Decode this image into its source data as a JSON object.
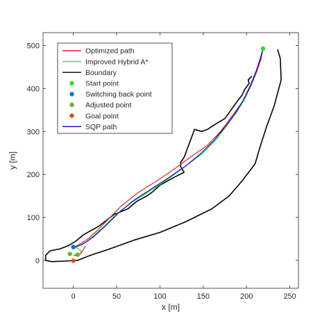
{
  "chart_data": {
    "type": "line",
    "title": "",
    "xlabel": "x [m]",
    "ylabel": "y [m]",
    "xlim": [
      -35,
      260
    ],
    "ylim": [
      -65,
      530
    ],
    "grid": false,
    "legend_position": "top-left",
    "x_ticks": [
      0,
      50,
      100,
      150,
      200,
      250
    ],
    "y_ticks": [
      0,
      100,
      200,
      300,
      400,
      500
    ],
    "x_tick_labels": [
      "0",
      "50",
      "100",
      "150",
      "200",
      "250"
    ],
    "y_tick_labels": [
      "0",
      "100",
      "200",
      "300",
      "400",
      "500"
    ],
    "legend": [
      {
        "label": "Optimized path",
        "kind": "line",
        "color": "#d62728"
      },
      {
        "label": "Improved Hybrid A*",
        "kind": "line",
        "color": "#2ee62e"
      },
      {
        "label": "Boundary",
        "kind": "line",
        "color": "#000000"
      },
      {
        "label": "Start point",
        "kind": "marker",
        "color": "#22e022"
      },
      {
        "label": "Switching back point",
        "kind": "marker",
        "color": "#0072bd"
      },
      {
        "label": "Adjusted point",
        "kind": "marker",
        "color": "#77ac30"
      },
      {
        "label": "Goal point",
        "kind": "marker",
        "color": "#d95319"
      },
      {
        "label": "SQP path",
        "kind": "line",
        "color": "#0000cd"
      }
    ],
    "series": [
      {
        "name": "Boundary",
        "color": "#000000",
        "width": 1.6,
        "kind": "line",
        "segments": [
          [
            [
              206,
              428
            ],
            [
              202,
              420
            ],
            [
              203,
              412
            ],
            [
              198,
              398
            ],
            [
              195,
              385
            ],
            [
              190,
              372
            ],
            [
              185,
              358
            ],
            [
              175,
              330
            ],
            [
              165,
              318
            ],
            [
              155,
              305
            ],
            [
              148,
              300
            ],
            [
              140,
              305
            ],
            [
              128,
              240
            ],
            [
              124,
              228
            ],
            [
              124,
              218
            ],
            [
              128,
              205
            ],
            [
              118,
              195
            ],
            [
              100,
              175
            ],
            [
              92,
              160
            ],
            [
              85,
              150
            ],
            [
              73,
              137
            ],
            [
              63,
              120
            ],
            [
              47,
              107
            ],
            [
              30,
              80
            ],
            [
              12,
              60
            ],
            [
              3,
              45
            ],
            [
              -5,
              35
            ],
            [
              -15,
              27
            ],
            [
              -27,
              22
            ],
            [
              -32,
              12
            ],
            [
              -32,
              0
            ],
            [
              -25,
              -3
            ],
            [
              -12,
              -2
            ],
            [
              5,
              0
            ],
            [
              20,
              12
            ],
            [
              40,
              25
            ],
            [
              70,
              47
            ],
            [
              100,
              65
            ],
            [
              130,
              90
            ],
            [
              160,
              120
            ],
            [
              180,
              150
            ],
            [
              195,
              185
            ],
            [
              210,
              225
            ],
            [
              215,
              260
            ],
            [
              223,
              310
            ],
            [
              232,
              360
            ],
            [
              240,
              420
            ],
            [
              239,
              470
            ],
            [
              236,
              490
            ]
          ]
        ]
      },
      {
        "name": "Improved Hybrid A*",
        "color": "#2ee62e",
        "width": 1.2,
        "kind": "line",
        "segments": [
          [
            [
              219,
              493
            ],
            [
              216,
              470
            ],
            [
              212,
              440
            ],
            [
              205,
              405
            ],
            [
              197,
              372
            ],
            [
              188,
              343
            ],
            [
              178,
              316
            ],
            [
              165,
              281
            ],
            [
              150,
              250
            ],
            [
              130,
              220
            ],
            [
              110,
              190
            ],
            [
              90,
              163
            ],
            [
              70,
              138
            ],
            [
              50,
              108
            ],
            [
              35,
              78
            ],
            [
              22,
              55
            ],
            [
              14,
              42
            ],
            [
              10,
              37
            ],
            [
              5,
              33
            ],
            [
              0,
              31
            ]
          ],
          [
            [
              0,
              31
            ],
            [
              5,
              28
            ],
            [
              9,
              22
            ],
            [
              8,
              15
            ],
            [
              3,
              12
            ],
            [
              0,
              13
            ]
          ]
        ]
      },
      {
        "name": "Optimized path",
        "color": "#d62728",
        "width": 1.2,
        "kind": "line",
        "segments": [
          [
            [
              219,
              493
            ],
            [
              217,
              470
            ],
            [
              212,
              440
            ],
            [
              204,
              402
            ],
            [
              195,
              368
            ],
            [
              183,
              335
            ],
            [
              170,
              300
            ],
            [
              155,
              268
            ],
            [
              135,
              240
            ],
            [
              115,
              210
            ],
            [
              95,
              183
            ],
            [
              75,
              158
            ],
            [
              55,
              126
            ],
            [
              40,
              95
            ],
            [
              28,
              70
            ],
            [
              18,
              52
            ],
            [
              11,
              42
            ],
            [
              6,
              36
            ],
            [
              2,
              32
            ],
            [
              0,
              31
            ]
          ],
          [
            [
              14,
              33
            ],
            [
              12,
              26
            ],
            [
              10,
              20
            ],
            [
              8,
              15
            ],
            [
              5,
              12
            ],
            [
              1,
              11
            ]
          ]
        ]
      },
      {
        "name": "SQP path",
        "color": "#0000cd",
        "width": 1.2,
        "kind": "line",
        "segments": [
          [
            [
              219,
              493
            ],
            [
              216,
              470
            ],
            [
              211,
              440
            ],
            [
              204,
              405
            ],
            [
              196,
              372
            ],
            [
              187,
              342
            ],
            [
              176,
              312
            ],
            [
              162,
              278
            ],
            [
              147,
              248
            ],
            [
              130,
              220
            ],
            [
              110,
              192
            ],
            [
              90,
              166
            ],
            [
              70,
              140
            ],
            [
              52,
              110
            ],
            [
              37,
              80
            ],
            [
              24,
              56
            ],
            [
              15,
              43
            ],
            [
              9,
              36
            ],
            [
              4,
              32
            ],
            [
              0,
              31
            ]
          ]
        ]
      },
      {
        "name": "Start point",
        "color": "#22e022",
        "kind": "marker",
        "x": [
          219
        ],
        "y": [
          493
        ]
      },
      {
        "name": "Switching back point",
        "color": "#0072bd",
        "kind": "marker",
        "x": [
          0
        ],
        "y": [
          31
        ]
      },
      {
        "name": "Adjusted point",
        "color": "#77ac30",
        "kind": "marker",
        "x": [
          -4,
          5
        ],
        "y": [
          15,
          13
        ]
      },
      {
        "name": "Goal point",
        "color": "#d95319",
        "kind": "marker",
        "x": [
          0
        ],
        "y": [
          -1
        ]
      }
    ]
  }
}
